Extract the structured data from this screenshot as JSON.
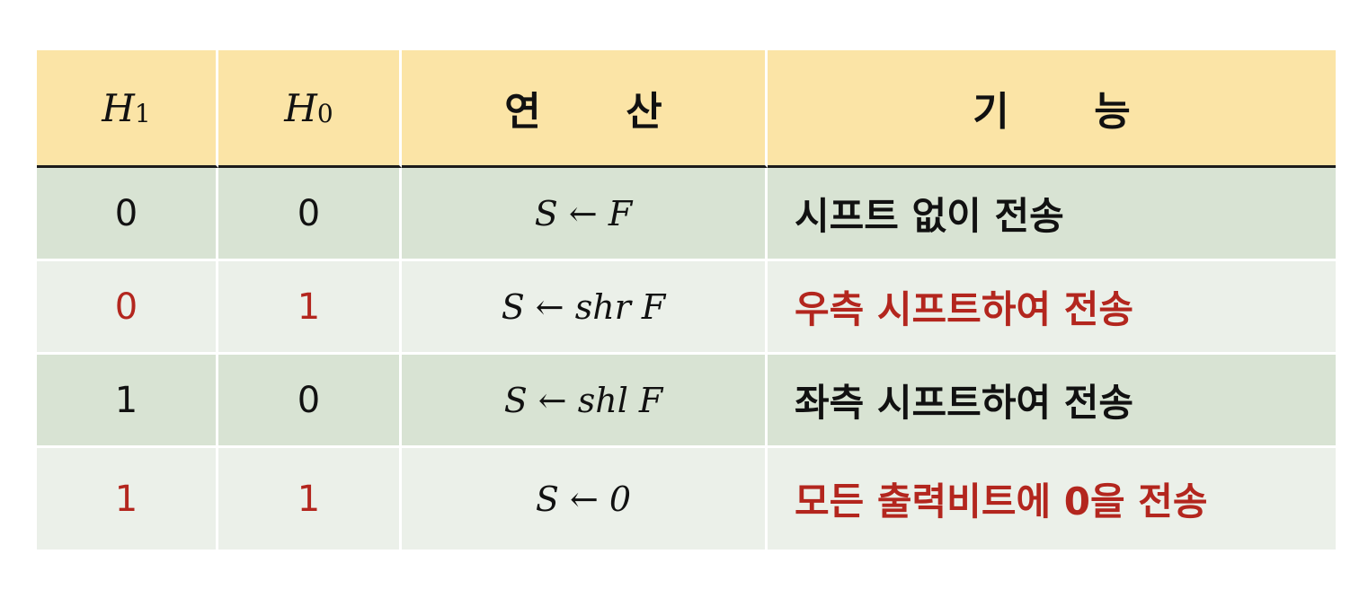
{
  "colors": {
    "header_bg": "#fbe4a6",
    "row_dark_bg": "#d8e3d3",
    "row_light_bg": "#ebf0e9",
    "highlight_text": "#b3261e",
    "normal_text": "#111111"
  },
  "header": {
    "h1_symbol": "H",
    "h1_subscript": "1",
    "h0_symbol": "H",
    "h0_subscript": "0",
    "operation": "연 산",
    "function": "기 능"
  },
  "rows": [
    {
      "h1": "0",
      "h0": "0",
      "operation": "S ← F",
      "function": "시프트 없이 전송",
      "highlight": false
    },
    {
      "h1": "0",
      "h0": "1",
      "operation": "S ← shr F",
      "function": "우측 시프트하여 전송",
      "highlight": true
    },
    {
      "h1": "1",
      "h0": "0",
      "operation": "S ← shl F",
      "function": "좌측 시프트하여 전송",
      "highlight": false
    },
    {
      "h1": "1",
      "h0": "1",
      "operation": "S ← 0",
      "function": "모든 출력비트에 0을 전송",
      "highlight": true
    }
  ]
}
